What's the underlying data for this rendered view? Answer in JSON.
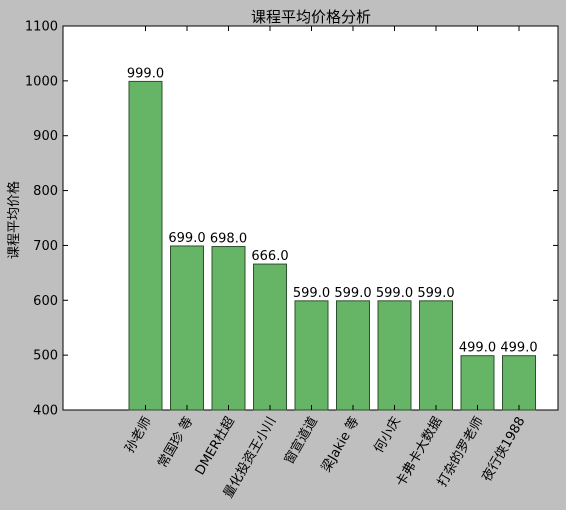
{
  "chart_data": {
    "type": "bar",
    "title": "课程平均价格分析",
    "xlabel": "",
    "ylabel": "课程平均价格",
    "ylim": [
      400,
      1100
    ],
    "yticks": [
      400,
      500,
      600,
      700,
      800,
      900,
      1000,
      1100
    ],
    "grid": false,
    "bar_color": "#66b466",
    "bar_edge_color": "#2f4f2f",
    "categories": [
      "孙老师",
      "常国珍 等",
      "DMER杜超",
      "量化投资王小川",
      "窗宣道道",
      "梁Jakie 等",
      "何小庆",
      "卡弗卡大数据",
      "打杂的罗老师",
      "夜行侠1988"
    ],
    "values": [
      999.0,
      699.0,
      698.0,
      666.0,
      599.0,
      599.0,
      599.0,
      599.0,
      499.0,
      499.0
    ],
    "data_labels": [
      "999.0",
      "699.0",
      "698.0",
      "666.0",
      "599.0",
      "599.0",
      "599.0",
      "599.0",
      "499.0",
      "499.0"
    ]
  }
}
